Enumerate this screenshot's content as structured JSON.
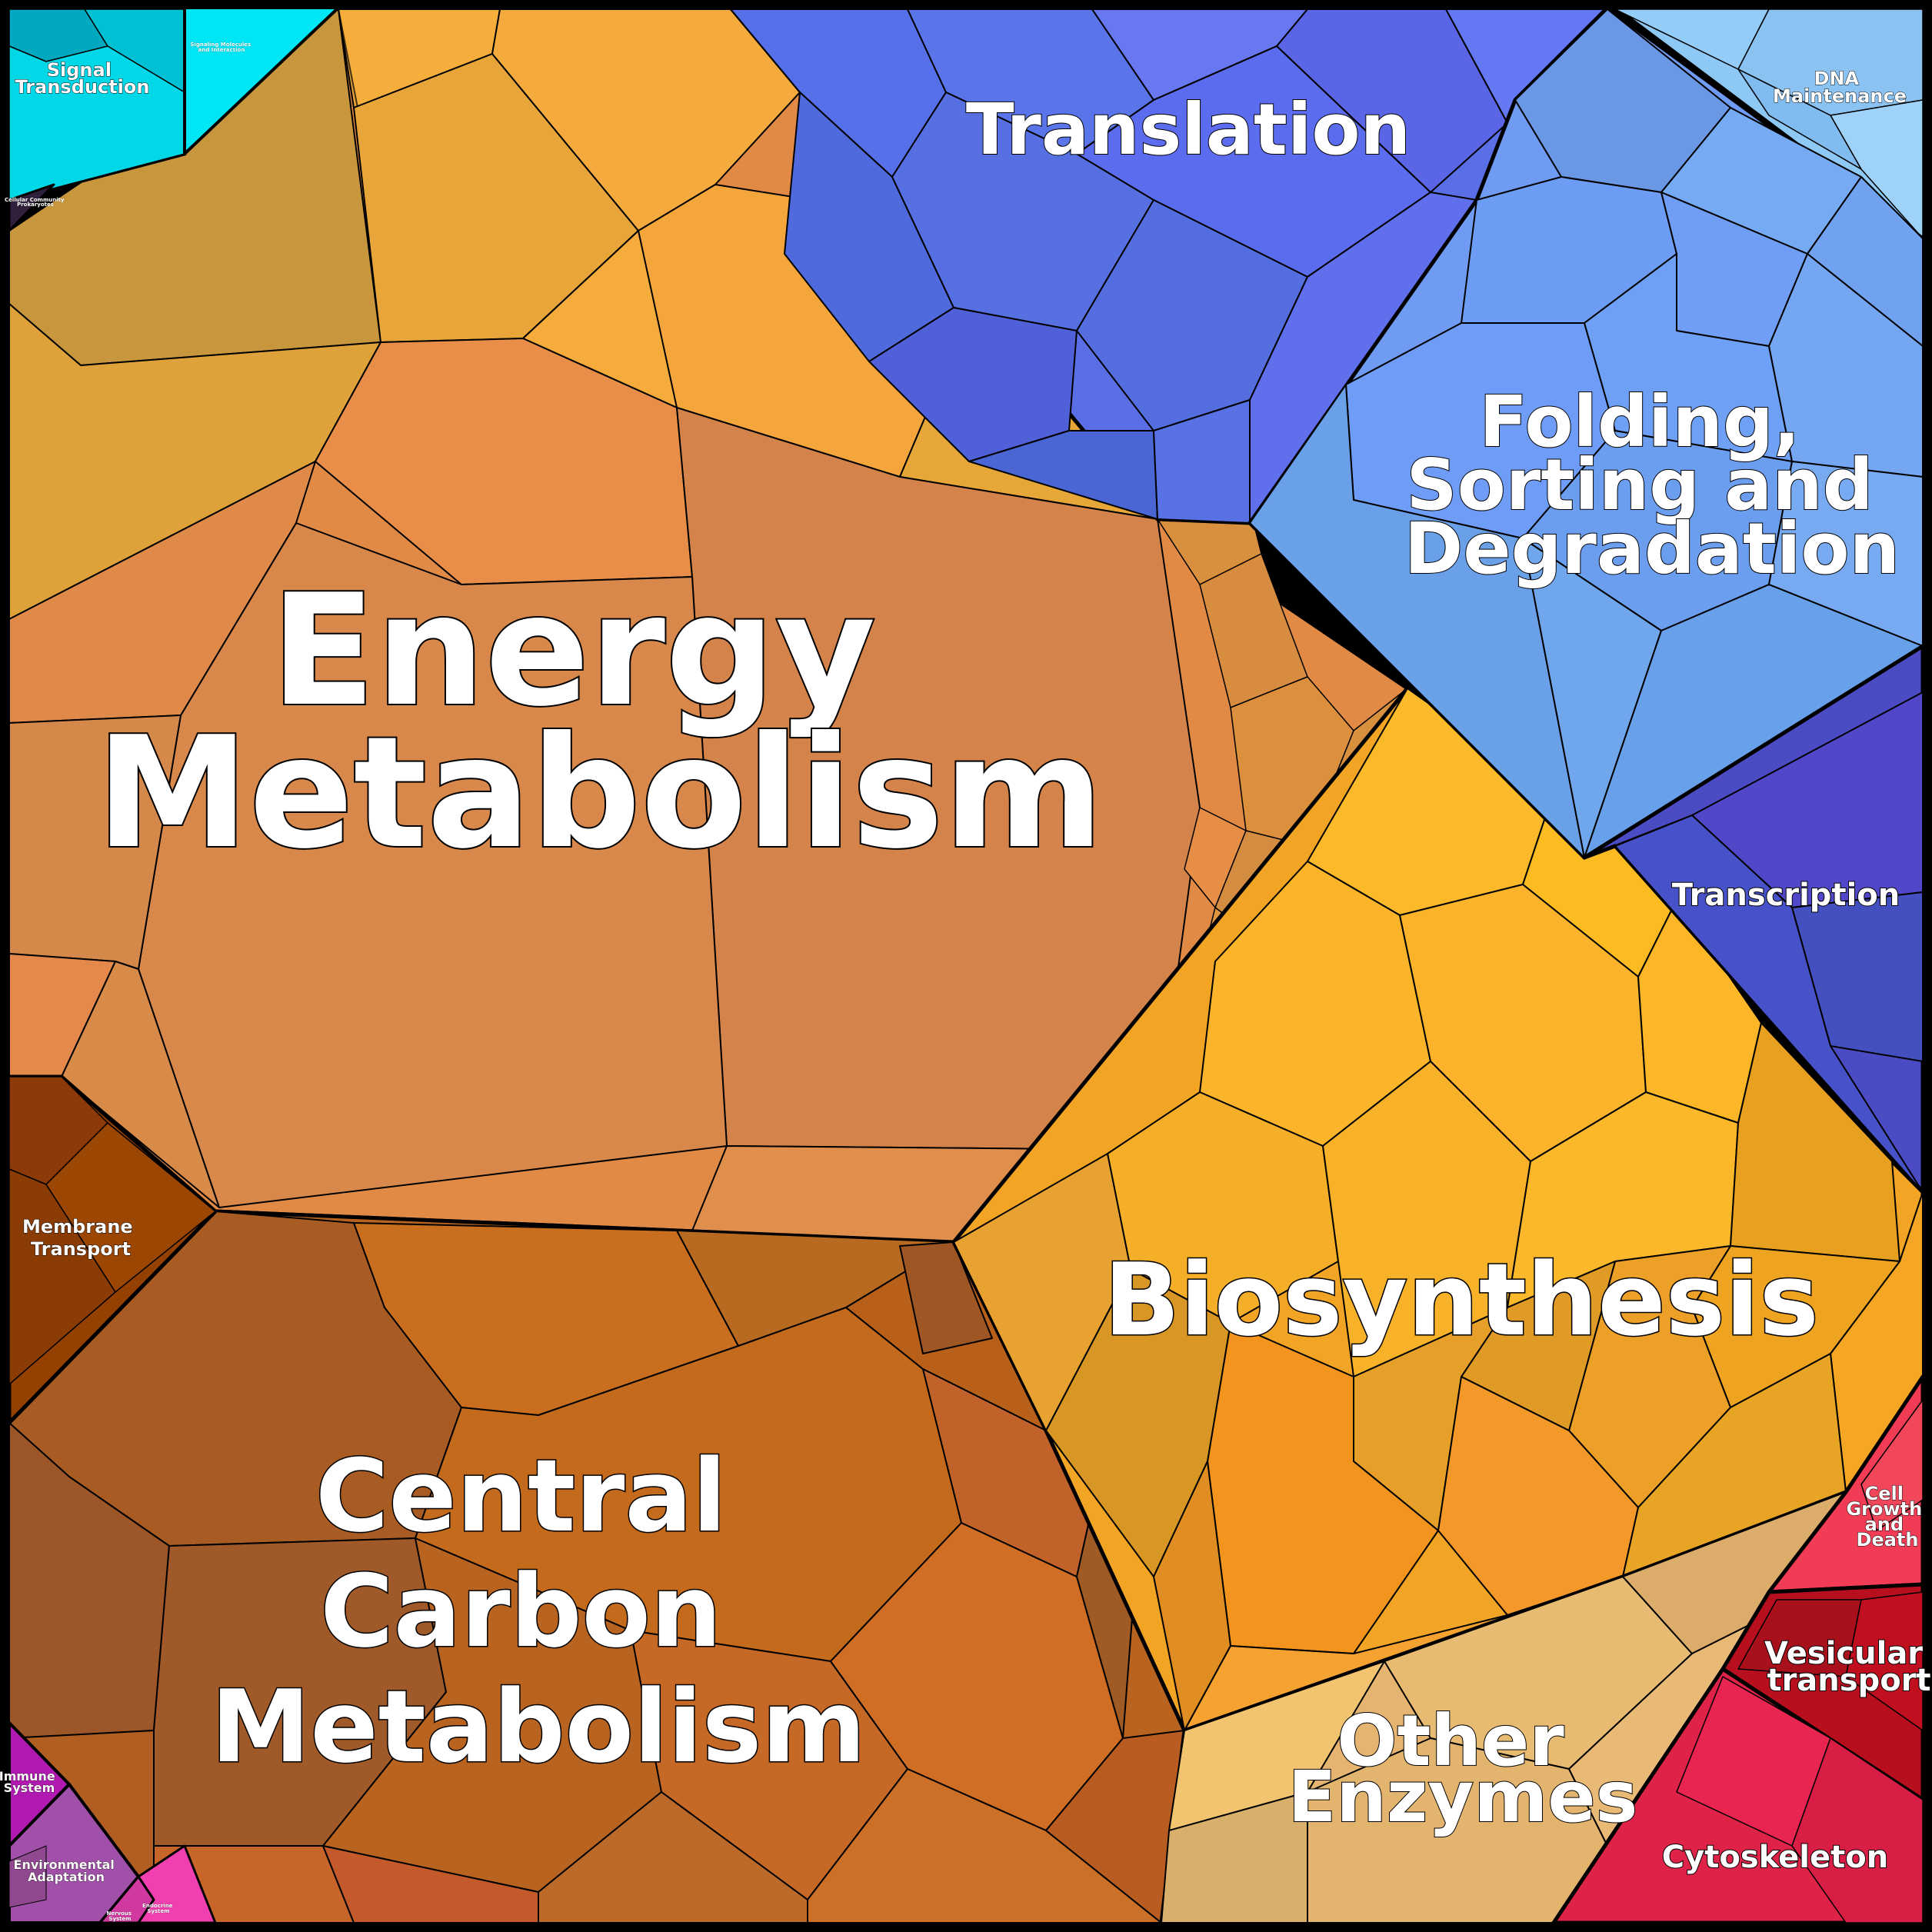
{
  "chart_data": {
    "type": "voronoi-treemap",
    "categories": [
      {
        "id": "energy",
        "label": [
          "Energy",
          "Metabolism"
        ],
        "color": "#e08a46"
      },
      {
        "id": "central-carbon",
        "label": [
          "Central",
          "Carbon",
          "Metabolism"
        ],
        "color": "#b86420"
      },
      {
        "id": "biosynthesis",
        "label": [
          "Biosynthesis"
        ],
        "color": "#f2a424"
      },
      {
        "id": "translation",
        "label": [
          "Translation"
        ],
        "color": "#5a6ee6"
      },
      {
        "id": "folding",
        "label": [
          "Folding,",
          "Sorting and",
          "Degradation"
        ],
        "color": "#6f9cf2"
      },
      {
        "id": "dna-maintenance",
        "label": [
          "DNA",
          "Maintenance"
        ],
        "color": "#8ec8f4"
      },
      {
        "id": "transcription",
        "label": [
          "Transcription"
        ],
        "color": "#4b4bc4"
      },
      {
        "id": "other-enzymes",
        "label": [
          "Other",
          "Enzymes"
        ],
        "color": "#e4b470"
      },
      {
        "id": "cell-growth",
        "label": [
          "Cell",
          "Growth",
          "and",
          "Death"
        ],
        "color": "#f23c55"
      },
      {
        "id": "vesicular",
        "label": [
          "Vesicular",
          "transport"
        ],
        "color": "#b80f1e"
      },
      {
        "id": "cytoskeleton",
        "label": [
          "Cytoskeleton"
        ],
        "color": "#de2248"
      },
      {
        "id": "membrane-transport",
        "label": [
          "Membrane",
          "Transport"
        ],
        "color": "#944000"
      },
      {
        "id": "signal-transduction",
        "label": [
          "Signal",
          "Transduction"
        ],
        "color": "#00c4d8"
      },
      {
        "id": "signaling-molecules",
        "label": [
          "Signaling Molecules",
          "and Interaction"
        ],
        "color": "#00e6f4"
      },
      {
        "id": "immune",
        "label": [
          "Immune",
          "System"
        ],
        "color": "#b01ab0"
      },
      {
        "id": "environmental",
        "label": [
          "Environmental",
          "Adaptation"
        ],
        "color": "#a050a8"
      },
      {
        "id": "nervous",
        "label": [
          "Nervous",
          "System"
        ],
        "color": "#d03aa0"
      },
      {
        "id": "endocrine",
        "label": [
          "Endocrine",
          "System"
        ],
        "color": "#f040b0"
      },
      {
        "id": "unlabeled-dark",
        "label": [
          "Cellular Community",
          "Prokaryotes"
        ],
        "color": "#30203c"
      }
    ]
  }
}
